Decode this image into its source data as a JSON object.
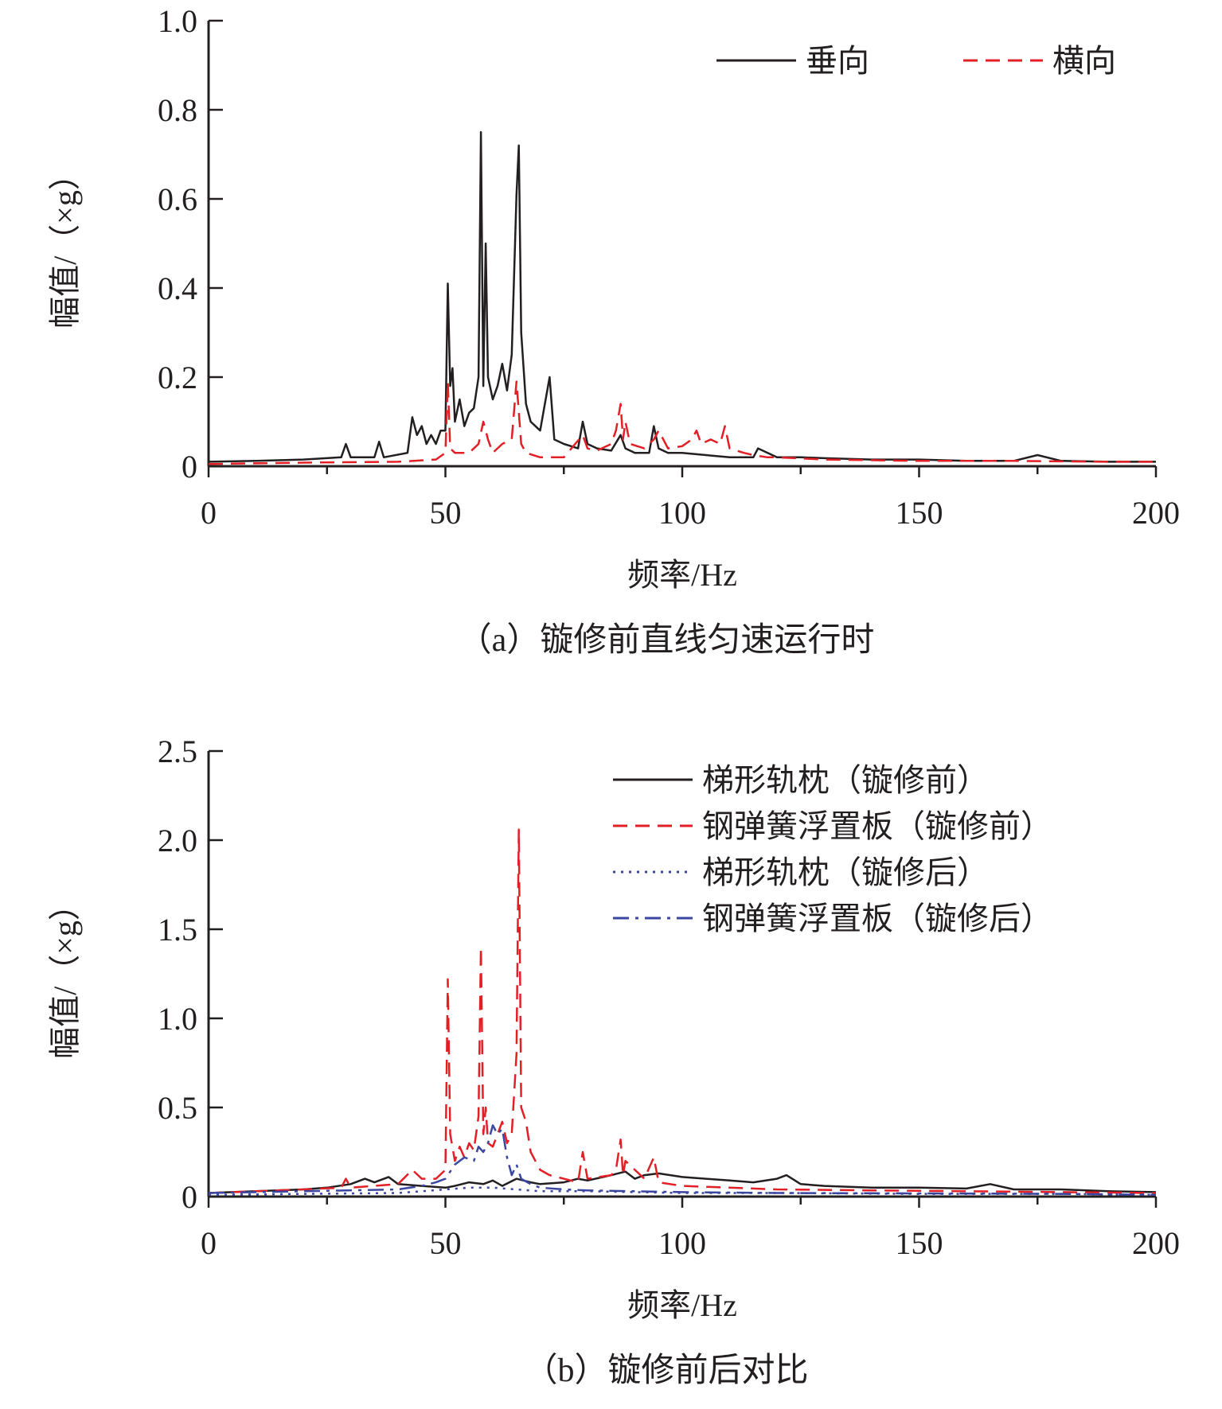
{
  "chart_data": [
    {
      "id": "a",
      "type": "line",
      "caption": "（a）镟修前直线匀速运行时",
      "xlabel": "频率/Hz",
      "ylabel": "幅值/（×g）",
      "xlim": [
        0,
        200
      ],
      "ylim": [
        0,
        1.0
      ],
      "x_ticks": [
        0,
        50,
        100,
        150,
        200
      ],
      "x_tick_labels": [
        "0",
        "50",
        "100",
        "150",
        "200"
      ],
      "y_ticks": [
        0,
        0.2,
        0.4,
        0.6,
        0.8,
        1.0
      ],
      "y_tick_labels": [
        "0",
        "0.2",
        "0.4",
        "0.6",
        "0.8",
        "1.0"
      ],
      "legend_position": "top-right",
      "series": [
        {
          "name": "垂向",
          "color": "#231f20",
          "dash": "solid",
          "x": [
            0,
            10,
            20,
            28,
            29,
            30,
            35,
            36,
            37,
            42,
            43,
            44,
            45,
            46,
            47,
            48,
            49,
            50,
            50.5,
            51,
            51.5,
            52,
            53,
            54,
            55,
            56,
            57,
            57.5,
            58,
            58.5,
            59,
            60,
            61,
            62,
            63,
            64,
            65,
            65.5,
            66,
            67,
            68,
            70,
            72,
            73,
            75,
            78,
            79,
            80,
            82,
            85,
            87,
            88,
            90,
            93,
            94,
            95,
            97,
            100,
            105,
            110,
            115,
            116,
            120,
            125,
            130,
            140,
            150,
            160,
            170,
            175,
            180,
            190,
            200
          ],
          "y": [
            0.01,
            0.012,
            0.015,
            0.02,
            0.05,
            0.02,
            0.02,
            0.055,
            0.02,
            0.03,
            0.11,
            0.07,
            0.09,
            0.05,
            0.07,
            0.05,
            0.08,
            0.08,
            0.41,
            0.18,
            0.22,
            0.1,
            0.15,
            0.09,
            0.12,
            0.13,
            0.2,
            0.75,
            0.18,
            0.5,
            0.2,
            0.15,
            0.18,
            0.23,
            0.17,
            0.25,
            0.61,
            0.72,
            0.3,
            0.14,
            0.1,
            0.08,
            0.2,
            0.06,
            0.05,
            0.04,
            0.1,
            0.05,
            0.04,
            0.035,
            0.07,
            0.04,
            0.03,
            0.03,
            0.09,
            0.04,
            0.03,
            0.03,
            0.025,
            0.02,
            0.02,
            0.04,
            0.02,
            0.02,
            0.018,
            0.015,
            0.015,
            0.012,
            0.012,
            0.025,
            0.012,
            0.01,
            0.01
          ]
        },
        {
          "name": "横向",
          "color": "#e31f26",
          "dash": "dash",
          "x": [
            0,
            20,
            40,
            48,
            50,
            50.5,
            51,
            52,
            55,
            57,
            58,
            59,
            60,
            62,
            64,
            65,
            66,
            67,
            70,
            75,
            79,
            80,
            82,
            85,
            86,
            87,
            87.5,
            88,
            89,
            92,
            94,
            95,
            97,
            100,
            102,
            103,
            104,
            106,
            108,
            109,
            110,
            113,
            115,
            118,
            120,
            130,
            150,
            170,
            190,
            200
          ],
          "y": [
            0.005,
            0.008,
            0.01,
            0.015,
            0.03,
            0.19,
            0.04,
            0.03,
            0.03,
            0.05,
            0.1,
            0.06,
            0.03,
            0.05,
            0.06,
            0.19,
            0.05,
            0.03,
            0.02,
            0.02,
            0.07,
            0.04,
            0.035,
            0.05,
            0.08,
            0.14,
            0.06,
            0.1,
            0.05,
            0.04,
            0.06,
            0.08,
            0.04,
            0.045,
            0.06,
            0.08,
            0.05,
            0.06,
            0.05,
            0.09,
            0.04,
            0.03,
            0.025,
            0.02,
            0.02,
            0.015,
            0.012,
            0.012,
            0.01,
            0.01
          ]
        }
      ]
    },
    {
      "id": "b",
      "type": "line",
      "caption": "（b）镟修前后对比",
      "xlabel": "频率/Hz",
      "ylabel": "幅值/（×g）",
      "xlim": [
        0,
        200
      ],
      "ylim": [
        0,
        2.5
      ],
      "x_ticks": [
        0,
        50,
        100,
        150,
        200
      ],
      "x_tick_labels": [
        "0",
        "50",
        "100",
        "150",
        "200"
      ],
      "y_ticks": [
        0,
        0.5,
        1.0,
        1.5,
        2.0,
        2.5
      ],
      "y_tick_labels": [
        "0",
        "0.5",
        "1.0",
        "1.5",
        "2.0",
        "2.5"
      ],
      "legend_position": "top-right",
      "series": [
        {
          "name": "梯形轨枕（镟修前）",
          "color": "#231f20",
          "dash": "solid",
          "x": [
            0,
            10,
            20,
            25,
            30,
            33,
            35,
            38,
            40,
            45,
            50,
            52,
            55,
            58,
            60,
            62,
            65,
            68,
            70,
            75,
            78,
            80,
            85,
            88,
            90,
            92,
            95,
            100,
            105,
            110,
            115,
            120,
            122,
            125,
            130,
            140,
            150,
            160,
            165,
            170,
            180,
            190,
            200
          ],
          "y": [
            0.02,
            0.03,
            0.04,
            0.05,
            0.07,
            0.1,
            0.08,
            0.11,
            0.07,
            0.06,
            0.05,
            0.06,
            0.08,
            0.07,
            0.09,
            0.06,
            0.1,
            0.08,
            0.07,
            0.08,
            0.1,
            0.09,
            0.12,
            0.14,
            0.1,
            0.12,
            0.13,
            0.11,
            0.1,
            0.09,
            0.08,
            0.1,
            0.12,
            0.07,
            0.06,
            0.05,
            0.05,
            0.045,
            0.07,
            0.04,
            0.04,
            0.03,
            0.025
          ]
        },
        {
          "name": "钢弹簧浮置板（镟修前）",
          "color": "#e31f26",
          "dash": "dash",
          "x": [
            0,
            20,
            28,
            29,
            30,
            40,
            43,
            45,
            48,
            50,
            50.5,
            51,
            52,
            53,
            54,
            55,
            56,
            57,
            57.5,
            58,
            58.5,
            59,
            60,
            61,
            62,
            63,
            64,
            65,
            65.5,
            66,
            67,
            68,
            69,
            70,
            72,
            75,
            78,
            79,
            80,
            85,
            86,
            87,
            87.5,
            88,
            92,
            94,
            95,
            100,
            110,
            120,
            140,
            160,
            180,
            200
          ],
          "y": [
            0.02,
            0.04,
            0.05,
            0.1,
            0.05,
            0.07,
            0.15,
            0.1,
            0.1,
            0.15,
            1.22,
            0.35,
            0.2,
            0.28,
            0.22,
            0.3,
            0.26,
            0.45,
            1.4,
            0.35,
            0.5,
            0.3,
            0.28,
            0.35,
            0.42,
            0.3,
            0.35,
            0.8,
            2.06,
            0.5,
            0.42,
            0.25,
            0.2,
            0.15,
            0.12,
            0.1,
            0.08,
            0.25,
            0.1,
            0.12,
            0.15,
            0.32,
            0.12,
            0.2,
            0.1,
            0.22,
            0.08,
            0.06,
            0.05,
            0.04,
            0.035,
            0.03,
            0.025,
            0.02
          ]
        },
        {
          "name": "梯形轨枕（镟修后）",
          "color": "#3b46a0",
          "dash": "dot",
          "x": [
            0,
            20,
            40,
            50,
            55,
            60,
            65,
            70,
            80,
            90,
            100,
            120,
            150,
            180,
            200
          ],
          "y": [
            0.01,
            0.015,
            0.02,
            0.04,
            0.05,
            0.05,
            0.04,
            0.03,
            0.03,
            0.025,
            0.02,
            0.02,
            0.015,
            0.015,
            0.01
          ]
        },
        {
          "name": "钢弹簧浮置板（镟修后）",
          "color": "#3b46a0",
          "dash": "dashdot",
          "x": [
            0,
            20,
            40,
            45,
            48,
            50,
            52,
            54,
            56,
            57,
            58,
            59,
            60,
            61,
            62,
            63,
            64,
            65,
            66,
            68,
            70,
            75,
            80,
            90,
            100,
            120,
            150,
            180,
            200
          ],
          "y": [
            0.02,
            0.03,
            0.04,
            0.06,
            0.08,
            0.1,
            0.18,
            0.22,
            0.2,
            0.28,
            0.25,
            0.3,
            0.4,
            0.35,
            0.38,
            0.22,
            0.12,
            0.18,
            0.1,
            0.07,
            0.05,
            0.04,
            0.035,
            0.03,
            0.025,
            0.02,
            0.018,
            0.015,
            0.01
          ]
        }
      ]
    }
  ]
}
